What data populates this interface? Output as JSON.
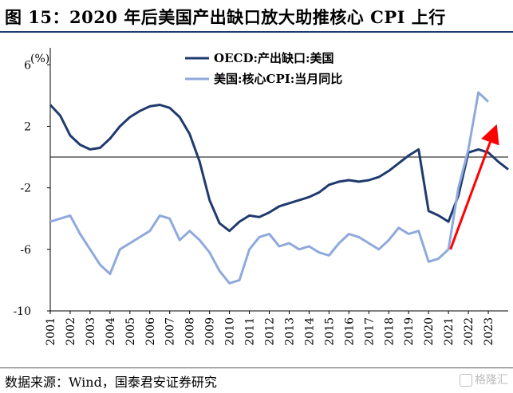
{
  "title": "图 15：2020 年后美国产出缺口放大助推核心 CPI 上行",
  "footer": "数据来源：Wind，国泰君安证券研究",
  "watermark": "格隆汇",
  "colors": {
    "title_rule": "#1f3a6e",
    "series_dark": "#1f3a6e",
    "series_light": "#8fa9dc",
    "arrow": "#ff0000"
  },
  "chart_data": {
    "type": "line",
    "ylabel": "(%)",
    "ylim": [
      -10,
      7
    ],
    "yticks": [
      6,
      2,
      -2,
      -6,
      -10
    ],
    "ytick_labels": [
      "6",
      "2",
      "-2",
      "-6",
      "-10"
    ],
    "xlim": [
      2001,
      2024
    ],
    "xticks": [
      2001,
      2002,
      2003,
      2004,
      2005,
      2006,
      2007,
      2008,
      2009,
      2010,
      2011,
      2012,
      2013,
      2014,
      2015,
      2016,
      2017,
      2018,
      2019,
      2020,
      2021,
      2022,
      2023
    ],
    "zero_line": true,
    "legend_position": "top-right",
    "series": [
      {
        "name": "OECD:产出缺口:美国",
        "x": [
          2001,
          2001.5,
          2002,
          2002.5,
          2003,
          2003.5,
          2004,
          2004.5,
          2005,
          2005.5,
          2006,
          2006.5,
          2007,
          2007.5,
          2008,
          2008.5,
          2009,
          2009.5,
          2010,
          2010.5,
          2011,
          2011.5,
          2012,
          2012.5,
          2013,
          2013.5,
          2014,
          2014.5,
          2015,
          2015.5,
          2016,
          2016.5,
          2017,
          2017.5,
          2018,
          2018.5,
          2019,
          2019.5,
          2020,
          2020.5,
          2021,
          2021.5,
          2022,
          2022.5,
          2023,
          2023.5,
          2024
        ],
        "values": [
          3.4,
          2.7,
          1.4,
          0.8,
          0.5,
          0.6,
          1.2,
          2.0,
          2.6,
          3.0,
          3.3,
          3.4,
          3.2,
          2.6,
          1.5,
          -0.3,
          -2.8,
          -4.3,
          -4.8,
          -4.2,
          -3.8,
          -3.9,
          -3.6,
          -3.2,
          -3.0,
          -2.8,
          -2.6,
          -2.3,
          -1.8,
          -1.6,
          -1.5,
          -1.6,
          -1.5,
          -1.3,
          -0.9,
          -0.4,
          0.1,
          0.5,
          -3.5,
          -3.8,
          -4.2,
          -2.5,
          0.3,
          0.5,
          0.3,
          -0.3,
          -0.8
        ]
      },
      {
        "name": "美国:核心CPI:当月同比",
        "x": [
          2001,
          2001.5,
          2002,
          2002.5,
          2003,
          2003.5,
          2004,
          2004.5,
          2005,
          2005.5,
          2006,
          2006.5,
          2007,
          2007.5,
          2008,
          2008.5,
          2009,
          2009.5,
          2010,
          2010.5,
          2011,
          2011.5,
          2012,
          2012.5,
          2013,
          2013.5,
          2014,
          2014.5,
          2015,
          2015.5,
          2016,
          2016.5,
          2017,
          2017.5,
          2018,
          2018.5,
          2019,
          2019.5,
          2020,
          2020.5,
          2021,
          2021.5,
          2022,
          2022.5,
          2023
        ],
        "values": [
          -4.2,
          -4.0,
          -3.8,
          -5.0,
          -6.0,
          -7.0,
          -7.6,
          -6.0,
          -5.6,
          -5.2,
          -4.8,
          -3.8,
          -4.0,
          -5.4,
          -4.8,
          -5.4,
          -6.2,
          -7.4,
          -8.2,
          -8.0,
          -6.0,
          -5.2,
          -5.0,
          -5.8,
          -5.6,
          -6.0,
          -5.8,
          -6.2,
          -6.4,
          -5.6,
          -5.0,
          -5.2,
          -5.6,
          -6.0,
          -5.4,
          -4.6,
          -5.0,
          -4.8,
          -6.8,
          -6.6,
          -6.0,
          -2.0,
          0.5,
          4.2,
          3.6
        ]
      }
    ],
    "annotations": [
      {
        "type": "arrow",
        "from": [
          2021.1,
          -6.0
        ],
        "to": [
          2023.3,
          1.7
        ]
      }
    ]
  }
}
